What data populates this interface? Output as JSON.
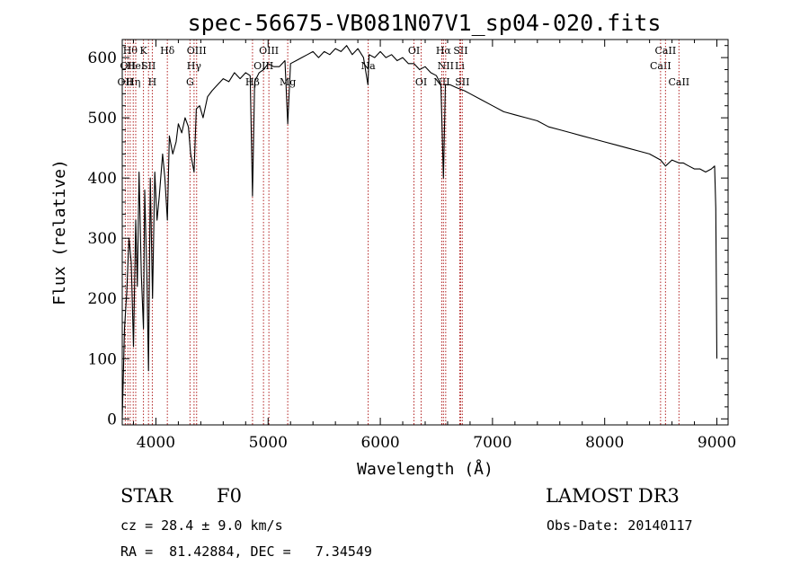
{
  "chart_data": {
    "type": "line",
    "title": "spec-56675-VB081N07V1_sp04-020.fits",
    "xlabel": "Wavelength (Å)",
    "ylabel": "Flux (relative)",
    "xlim": [
      3700,
      9100
    ],
    "ylim": [
      -10,
      630
    ],
    "x_ticks": [
      4000,
      5000,
      6000,
      7000,
      8000,
      9000
    ],
    "y_ticks": [
      0,
      100,
      200,
      300,
      400,
      500,
      600
    ],
    "grid": false,
    "series": [
      {
        "name": "spectrum",
        "x": [
          3700,
          3720,
          3740,
          3760,
          3780,
          3800,
          3820,
          3835,
          3850,
          3870,
          3889,
          3900,
          3920,
          3934,
          3950,
          3970,
          3990,
          4010,
          4030,
          4060,
          4080,
          4102,
          4120,
          4150,
          4180,
          4200,
          4230,
          4260,
          4290,
          4310,
          4340,
          4360,
          4390,
          4420,
          4460,
          4500,
          4550,
          4600,
          4650,
          4700,
          4750,
          4800,
          4840,
          4861,
          4880,
          4920,
          4960,
          5000,
          5050,
          5100,
          5150,
          5175,
          5200,
          5250,
          5300,
          5350,
          5400,
          5450,
          5500,
          5550,
          5600,
          5650,
          5700,
          5750,
          5800,
          5850,
          5890,
          5900,
          5950,
          6000,
          6050,
          6100,
          6150,
          6200,
          6250,
          6300,
          6350,
          6400,
          6450,
          6500,
          6540,
          6563,
          6580,
          6620,
          6680,
          6750,
          6800,
          6900,
          7000,
          7100,
          7200,
          7300,
          7400,
          7500,
          7600,
          7700,
          7800,
          7900,
          8000,
          8100,
          8200,
          8300,
          8400,
          8498,
          8542,
          8600,
          8662,
          8700,
          8750,
          8800,
          8850,
          8900,
          8950,
          8980,
          8990,
          9000
        ],
        "values": [
          0,
          150,
          210,
          300,
          260,
          120,
          330,
          220,
          410,
          240,
          150,
          380,
          230,
          80,
          400,
          200,
          410,
          330,
          370,
          440,
          400,
          330,
          470,
          440,
          460,
          490,
          475,
          500,
          485,
          440,
          410,
          515,
          520,
          500,
          535,
          545,
          555,
          565,
          560,
          575,
          565,
          575,
          570,
          370,
          560,
          575,
          580,
          590,
          585,
          585,
          595,
          490,
          590,
          595,
          600,
          605,
          610,
          600,
          610,
          605,
          615,
          610,
          620,
          605,
          615,
          600,
          555,
          605,
          600,
          610,
          600,
          605,
          595,
          600,
          590,
          590,
          580,
          585,
          575,
          570,
          555,
          400,
          555,
          555,
          550,
          545,
          540,
          530,
          520,
          510,
          505,
          500,
          495,
          485,
          480,
          475,
          470,
          465,
          460,
          455,
          450,
          445,
          440,
          430,
          420,
          430,
          425,
          425,
          420,
          415,
          415,
          410,
          415,
          420,
          350,
          100
        ]
      }
    ],
    "lines": [
      {
        "x": 3727,
        "label": "OII",
        "row": 2
      },
      {
        "x": 3750,
        "label": "OII",
        "row": 1
      },
      {
        "x": 3771,
        "label": "Hθ",
        "row": 0
      },
      {
        "x": 3798,
        "label": "Hη",
        "row": 2
      },
      {
        "x": 3820,
        "label": "HeI",
        "row": 1
      },
      {
        "x": 3889,
        "label": "K",
        "row": 0
      },
      {
        "x": 3934,
        "label": "SII",
        "row": 1
      },
      {
        "x": 3968,
        "label": "H",
        "row": 2
      },
      {
        "x": 4102,
        "label": "Hδ",
        "row": 0
      },
      {
        "x": 4304,
        "label": "G",
        "row": 2
      },
      {
        "x": 4340,
        "label": "Hγ",
        "row": 1
      },
      {
        "x": 4363,
        "label": "OIII",
        "row": 0
      },
      {
        "x": 4861,
        "label": "Hβ",
        "row": 2
      },
      {
        "x": 4959,
        "label": "OIII",
        "row": 1
      },
      {
        "x": 5007,
        "label": "OIII",
        "row": 0
      },
      {
        "x": 5175,
        "label": "Mg",
        "row": 2
      },
      {
        "x": 5892,
        "label": "Na",
        "row": 1
      },
      {
        "x": 6300,
        "label": "OI",
        "row": 0
      },
      {
        "x": 6364,
        "label": "OI",
        "row": 2
      },
      {
        "x": 6548,
        "label": "NII",
        "row": 2
      },
      {
        "x": 6563,
        "label": "Hα",
        "row": 0
      },
      {
        "x": 6583,
        "label": "NII",
        "row": 1
      },
      {
        "x": 6708,
        "label": "Li",
        "row": 1
      },
      {
        "x": 6716,
        "label": "SII",
        "row": 0
      },
      {
        "x": 6731,
        "label": "SII",
        "row": 2
      },
      {
        "x": 8498,
        "label": "CaII",
        "row": 1
      },
      {
        "x": 8542,
        "label": "CaII",
        "row": 0
      },
      {
        "x": 8662,
        "label": "CaII",
        "row": 2
      }
    ]
  },
  "info": {
    "class_label": "STAR",
    "subclass": "F0",
    "survey": "LAMOST DR3",
    "cz_text": "cz = 28.4 ± 9.0 km/s",
    "obs_date": "Obs-Date: 20140117",
    "coords": "RA =  81.42884, DEC =   7.34549"
  },
  "colors": {
    "emission_line": "#b22222",
    "spectrum": "#000000",
    "axes": "#000000"
  }
}
